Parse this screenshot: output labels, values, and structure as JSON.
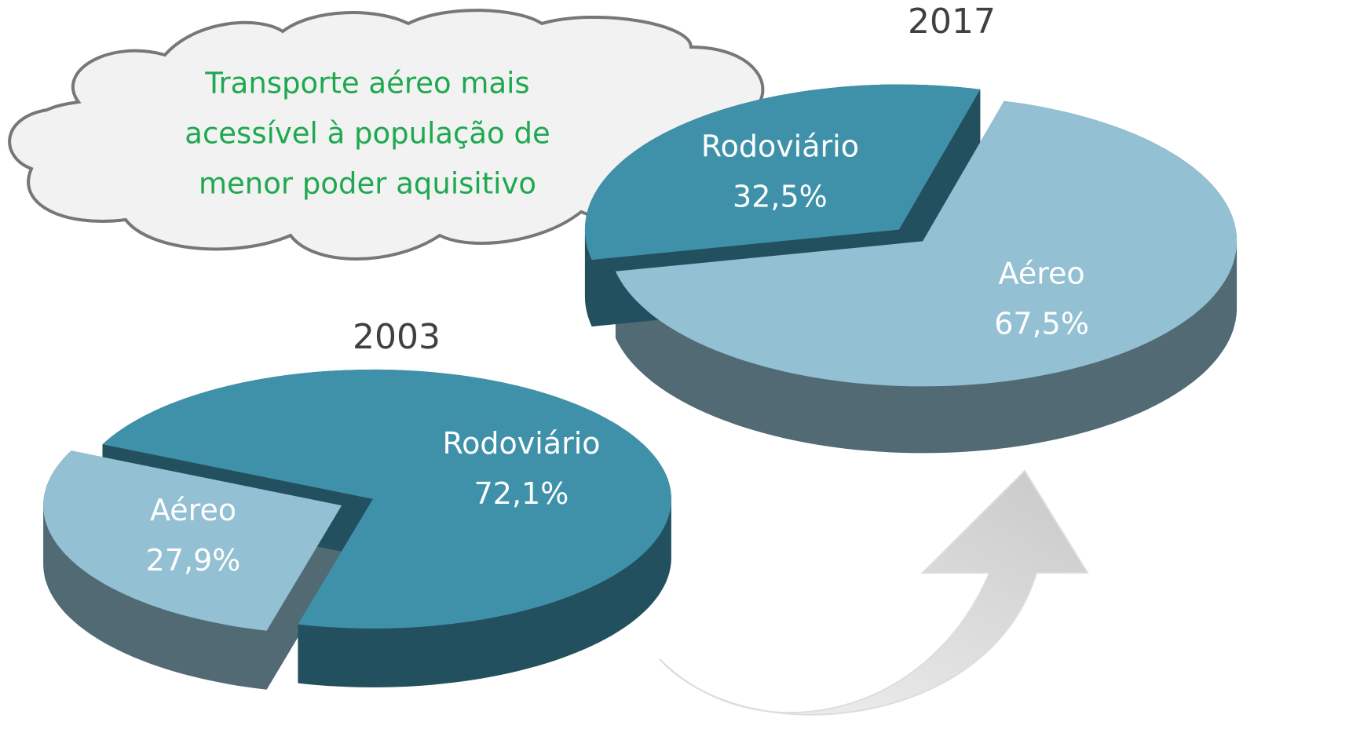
{
  "annotation": [
    "Transporte aéreo mais",
    "acessível à população de",
    "menor poder aquisitivo"
  ],
  "chart_data": [
    {
      "type": "pie",
      "title": "2003",
      "categories": [
        "Aéreo",
        "Rodoviário"
      ],
      "values": [
        27.9,
        72.1
      ],
      "value_labels": [
        "27,9%",
        "72,1%"
      ],
      "colors": [
        "#93c0d3",
        "#3f91aa"
      ]
    },
    {
      "type": "pie",
      "title": "2017",
      "categories": [
        "Aéreo",
        "Rodoviário"
      ],
      "values": [
        67.5,
        32.5
      ],
      "value_labels": [
        "67,5%",
        "32,5%"
      ],
      "colors": [
        "#93c0d3",
        "#3f91aa"
      ]
    }
  ]
}
